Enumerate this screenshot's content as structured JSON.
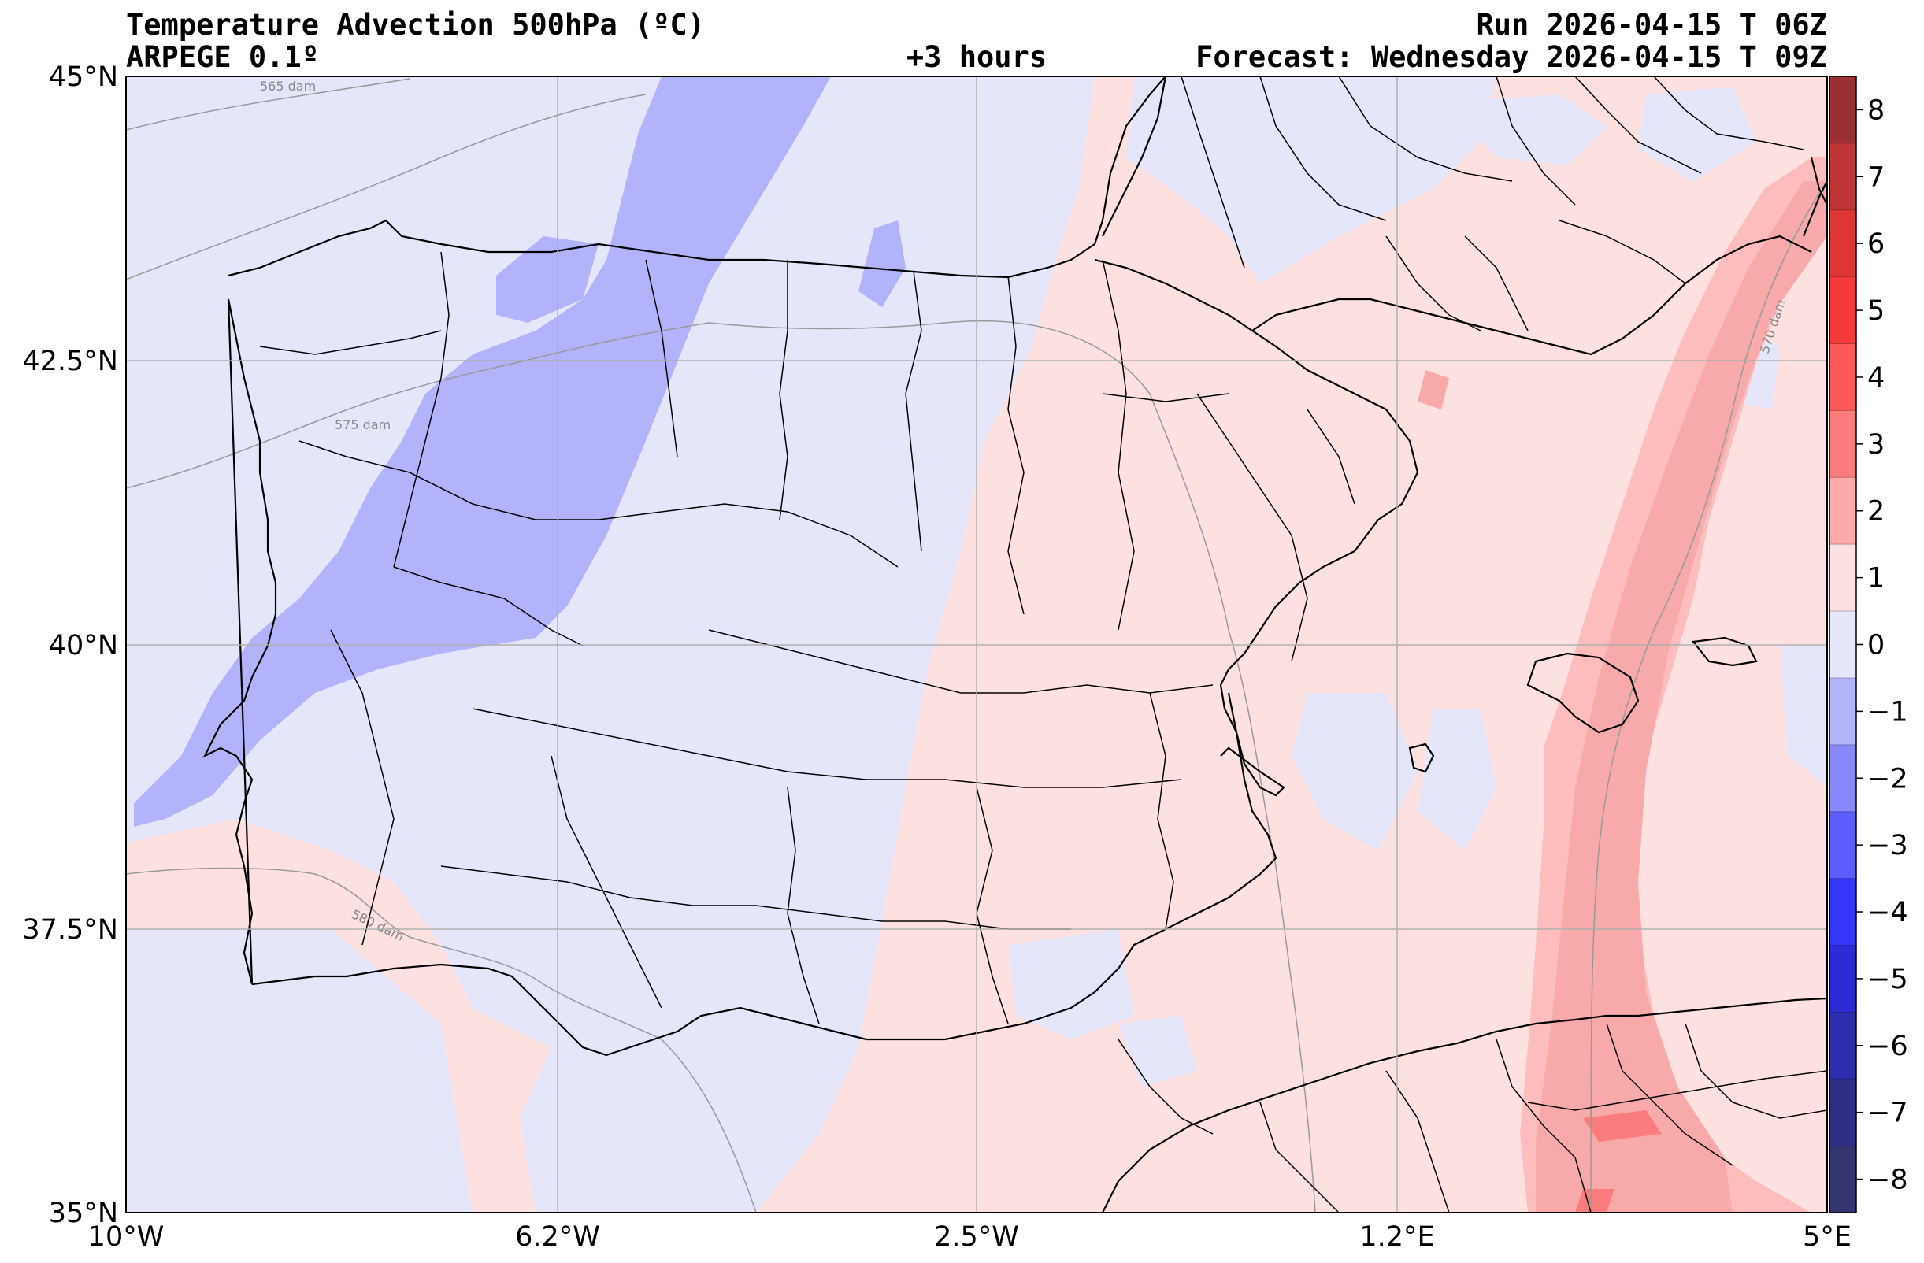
{
  "header": {
    "title": "Temperature Advection  500hPa (ºC)",
    "model": "ARPEGE 0.1º",
    "lead_time": "+3 hours",
    "run": "Run 2026-04-15 T 06Z",
    "forecast": "Forecast: Wednesday 2026-04-15 T 09Z"
  },
  "map": {
    "region": "Iberian Peninsula and western Mediterranean",
    "lon_range": [
      -10,
      5
    ],
    "lat_range": [
      35,
      45
    ],
    "lon_ticks": [
      {
        "value": -10,
        "label": "10°W"
      },
      {
        "value": -6.2,
        "label": "6.2°W"
      },
      {
        "value": -2.5,
        "label": "2.5°W"
      },
      {
        "value": 1.2,
        "label": "1.2°E"
      },
      {
        "value": 5,
        "label": "5°E"
      }
    ],
    "lat_ticks": [
      {
        "value": 45,
        "label": "45°N"
      },
      {
        "value": 42.5,
        "label": "42.5°N"
      },
      {
        "value": 40,
        "label": "40°N"
      },
      {
        "value": 37.5,
        "label": "37.5°N"
      },
      {
        "value": 35,
        "label": "35°N"
      }
    ],
    "contour_labels": [
      "565 dam",
      "570 dam",
      "575 dam",
      "580 dam"
    ],
    "colors": {
      "background_neutral_pos": "#fde0e0",
      "background_neutral_neg": "#e6e6fb",
      "cold_1": "#b3b3fb",
      "warm_1": "#fdbdbd",
      "warm_2": "#f8aaaa",
      "grid": "#b0b0b0",
      "contour": "#999999",
      "border": "#000000"
    }
  },
  "colorbar": {
    "levels": [
      8,
      7,
      6,
      5,
      4,
      3,
      2,
      1,
      0,
      -1,
      -2,
      -3,
      -4,
      -5,
      -6,
      -7,
      -8
    ],
    "tick_labels": [
      "8",
      "7",
      "6",
      "5",
      "4",
      "3",
      "2",
      "1",
      "0",
      "−1",
      "−2",
      "−3",
      "−4",
      "−5",
      "−6",
      "−7",
      "−8"
    ],
    "colors": [
      "#9c2f33",
      "#c03636",
      "#de3535",
      "#f63a3a",
      "#fb5858",
      "#fb7c7c",
      "#fda9a9",
      "#fde1e1",
      "#e6e6fb",
      "#b4b4fb",
      "#8888fb",
      "#5d5dfb",
      "#3636fa",
      "#2c2cd6",
      "#2c2caf",
      "#2e2e86",
      "#34346e"
    ]
  }
}
